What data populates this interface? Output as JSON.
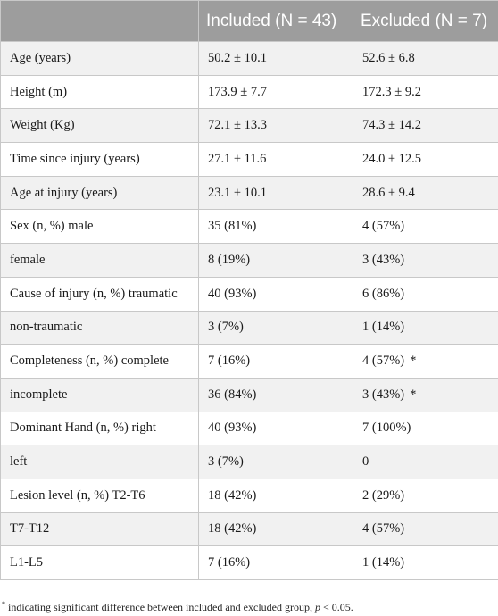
{
  "table": {
    "headers": [
      "",
      "Included (N = 43)",
      "Excluded (N = 7)"
    ],
    "rows": [
      {
        "label": "Age (years)",
        "included": "50.2 ± 10.1",
        "excluded": "52.6 ± 6.8",
        "mark": ""
      },
      {
        "label": "Height (m)",
        "included": "173.9 ± 7.7",
        "excluded": "172.3 ± 9.2",
        "mark": ""
      },
      {
        "label": "Weight (Kg)",
        "included": "72.1 ± 13.3",
        "excluded": "74.3 ± 14.2",
        "mark": ""
      },
      {
        "label": "Time since injury (years)",
        "included": "27.1 ± 11.6",
        "excluded": "24.0 ± 12.5",
        "mark": ""
      },
      {
        "label": "Age at injury (years)",
        "included": "23.1 ± 10.1",
        "excluded": "28.6 ± 9.4",
        "mark": ""
      },
      {
        "label": "Sex (n, %) male",
        "included": "35 (81%)",
        "excluded": "4 (57%)",
        "mark": ""
      },
      {
        "label": "female",
        "included": "8 (19%)",
        "excluded": "3 (43%)",
        "mark": ""
      },
      {
        "label": "Cause of injury (n, %) traumatic",
        "included": "40 (93%)",
        "excluded": "6 (86%)",
        "mark": ""
      },
      {
        "label": "non-traumatic",
        "included": "3 (7%)",
        "excluded": "1 (14%)",
        "mark": ""
      },
      {
        "label": "Completeness (n, %) complete",
        "included": "7 (16%)",
        "excluded": "4 (57%)",
        "mark": "*"
      },
      {
        "label": "incomplete",
        "included": "36 (84%)",
        "excluded": "3 (43%)",
        "mark": "*"
      },
      {
        "label": "Dominant Hand (n, %) right",
        "included": "40 (93%)",
        "excluded": "7 (100%)",
        "mark": ""
      },
      {
        "label": "left",
        "included": "3 (7%)",
        "excluded": "0",
        "mark": ""
      },
      {
        "label": "Lesion level (n, %) T2-T6",
        "included": "18 (42%)",
        "excluded": "2 (29%)",
        "mark": ""
      },
      {
        "label": "T7-T12",
        "included": "18 (42%)",
        "excluded": "4 (57%)",
        "mark": ""
      },
      {
        "label": "L1-L5",
        "included": "7 (16%)",
        "excluded": "1 (14%)",
        "mark": ""
      }
    ]
  },
  "footnote": {
    "symbol": "*",
    "text": " indicating significant difference between included and excluded group, ",
    "p_symbol": "p",
    "p_value": " < 0.05."
  }
}
